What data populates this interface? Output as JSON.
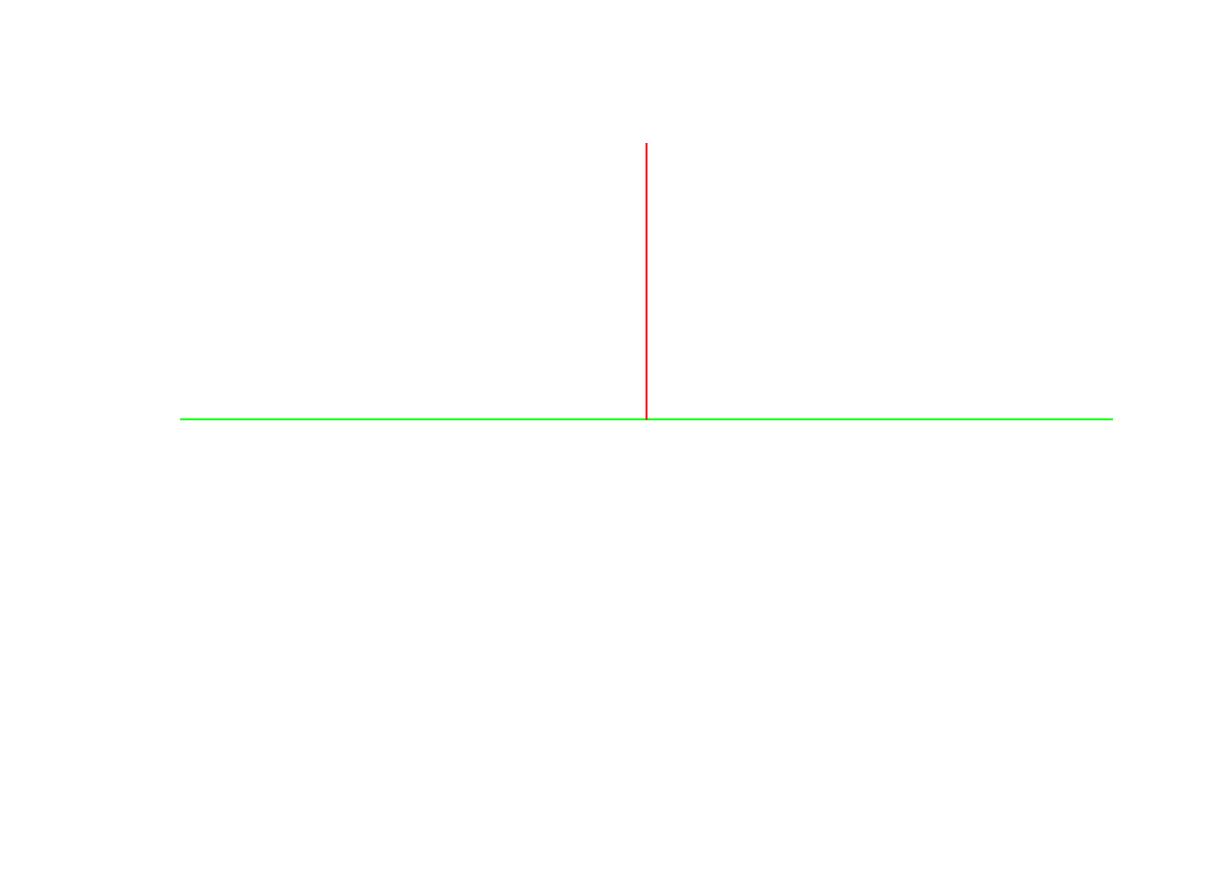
{
  "diagram": {
    "background_color": "#ffffff",
    "lines": [
      {
        "id": "horizontal-line",
        "orientation": "horizontal",
        "color": "#00ff00"
      },
      {
        "id": "vertical-line",
        "orientation": "vertical",
        "color": "#ff0000"
      }
    ]
  }
}
